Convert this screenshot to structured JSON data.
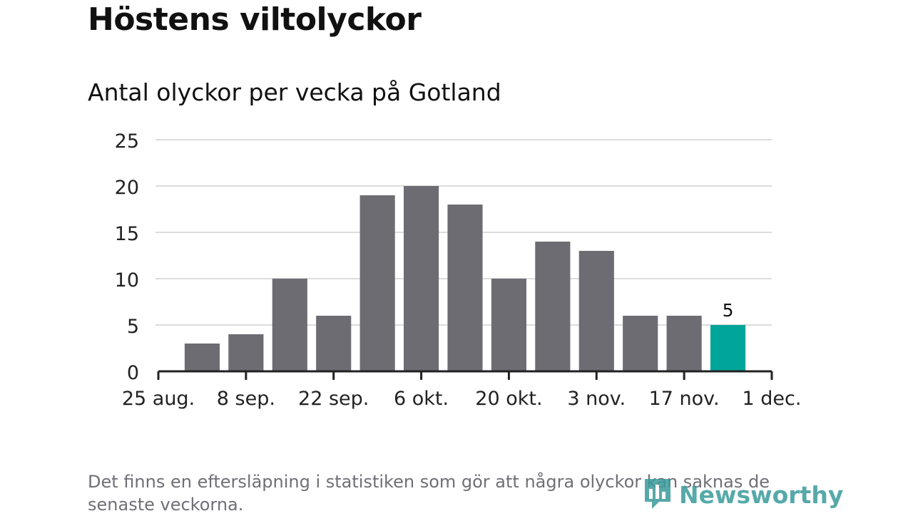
{
  "header": {
    "title": "Höstens viltolyckor",
    "subtitle": "Antal olyckor per vecka på Gotland"
  },
  "chart_data": {
    "type": "bar",
    "title": "Antal olyckor per vecka på Gotland",
    "xlabel": "",
    "ylabel": "",
    "ylim": [
      0,
      25
    ],
    "yticks": [
      0,
      5,
      10,
      15,
      20,
      25
    ],
    "xtick_labels": [
      "25 aug.",
      "8 sep.",
      "22 sep.",
      "6 okt.",
      "20 okt.",
      "3 nov.",
      "17 nov.",
      "1 dec."
    ],
    "values": [
      3,
      4,
      10,
      6,
      19,
      20,
      18,
      10,
      14,
      13,
      6,
      6,
      5
    ],
    "highlight_index": 12,
    "highlight_label": "5",
    "colors": {
      "bar": "#6d6c72",
      "highlight": "#00a59a",
      "grid": "#dcdcdc",
      "axis": "#222222"
    }
  },
  "footer": {
    "note": "Det finns en eftersläpning i statistiken som gör att några olyckor kan saknas de senaste veckorna.",
    "logo_text": "Newsworthy",
    "logo_icon": "bar-chart-icon"
  }
}
